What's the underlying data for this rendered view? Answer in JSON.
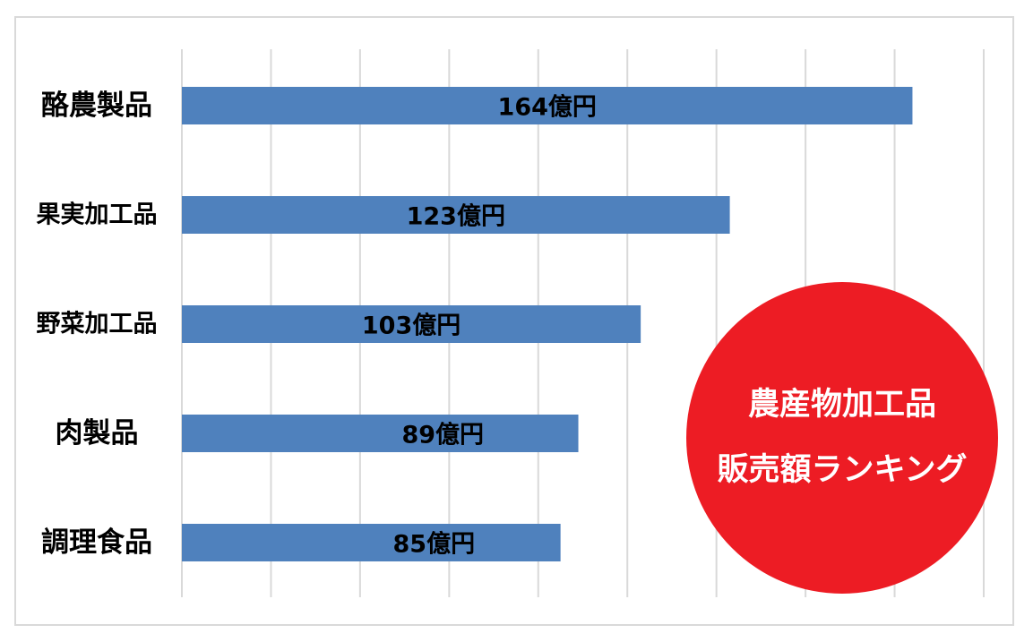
{
  "chart_data": {
    "type": "bar",
    "orientation": "horizontal",
    "categories": [
      "酪農製品",
      "果実加工品",
      "野菜加工品",
      "肉製品",
      "調理食品"
    ],
    "values": [
      164,
      123,
      103,
      89,
      85
    ],
    "value_labels": [
      "164億円",
      "123億円",
      "103億円",
      "89億円",
      "85億円"
    ],
    "unit": "億円",
    "xlim": [
      0,
      180
    ],
    "grid": true,
    "legend": "none",
    "bar_color": "#4f81bd",
    "grid_color": "#d9d9d9"
  },
  "badge": {
    "line1": "農産物加工品",
    "line2": "販売額ランキング",
    "color": "#ed1c24",
    "text_color": "#ffffff"
  }
}
